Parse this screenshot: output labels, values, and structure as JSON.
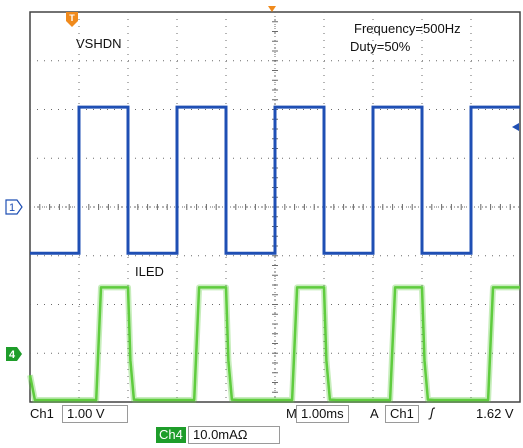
{
  "chart_data": {
    "type": "line",
    "title": "",
    "xlabel": "",
    "ylabel": "",
    "annotations": [
      "Frequency=500Hz",
      "Duty=50%"
    ],
    "grid": true,
    "x_divisions": 10,
    "y_divisions": 8,
    "x_unit": "ms",
    "x_per_division": 1.0,
    "xlim": [
      0,
      10
    ],
    "series": [
      {
        "name": "VSHDN",
        "channel": "Ch1",
        "color": "#1f4fb4",
        "volts_per_division": 1.0,
        "unit": "V",
        "x": [
          0,
          1.0,
          1.0,
          2.0,
          2.0,
          3.0,
          3.0,
          4.0,
          4.0,
          5.0,
          5.0,
          6.0,
          6.0,
          7.0,
          7.0,
          8.0,
          8.0,
          9.0,
          9.0,
          10.0
        ],
        "y": [
          0,
          0,
          3.0,
          3.0,
          0,
          0,
          3.0,
          3.0,
          0,
          0,
          3.0,
          3.0,
          0,
          0,
          3.0,
          3.0,
          0,
          0,
          3.0,
          3.0
        ]
      },
      {
        "name": "ILED",
        "channel": "Ch4",
        "color": "#5fcc3e",
        "amps_per_division": 0.01,
        "unit": "A",
        "x": [
          0,
          0.1,
          0.2,
          0.4,
          1.35,
          1.45,
          2.0,
          2.05,
          2.12,
          2.25,
          2.5,
          3.35,
          3.45,
          4.0,
          4.05,
          4.12,
          4.25,
          4.5,
          5.35,
          5.45,
          6.0,
          6.05,
          6.12,
          6.25,
          6.5,
          7.35,
          7.45,
          8.0,
          8.05,
          8.12,
          8.25,
          8.5,
          9.35,
          9.45,
          10.0
        ],
        "y": [
          0.012,
          0.004,
          0.001,
          0,
          0,
          0.03,
          0.03,
          0.015,
          0.007,
          0.003,
          0,
          0,
          0.03,
          0.03,
          0.015,
          0.007,
          0.003,
          0,
          0,
          0.03,
          0.03,
          0.015,
          0.007,
          0.003,
          0,
          0,
          0.03,
          0.03,
          0.015,
          0.007,
          0.003,
          0,
          0,
          0.03,
          0.03
        ]
      }
    ]
  },
  "labels": {
    "frequency": "Frequency=500Hz",
    "duty": "Duty=50%",
    "vshdn": "VSHDN",
    "iled": "ILED",
    "ch1_marker": "1",
    "ch4_marker": "4",
    "trigger_marker": "T"
  },
  "status_bar": {
    "ch1_name": "Ch1",
    "ch1_scale": "1.00 V",
    "timebase_prefix": "M",
    "timebase": "1.00ms",
    "trigger_mode": "A",
    "trigger_source": "Ch1",
    "trigger_slope": "ʃ",
    "trigger_level": "1.62 V",
    "ch4_name": "Ch4",
    "ch4_scale": "10.0mAΩ"
  },
  "colors": {
    "ch1": "#1f4fb4",
    "ch4": "#5fcc3e",
    "ch4_tag": "#1e9d2a",
    "trigger": "#f08a1c",
    "grid": "#6a6a6a"
  }
}
